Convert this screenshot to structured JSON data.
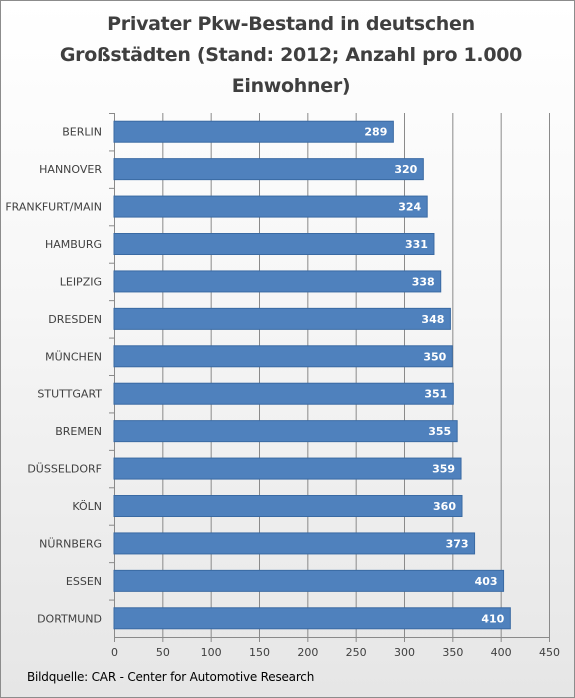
{
  "chart_data": {
    "type": "bar",
    "orientation": "horizontal",
    "title": "Privater Pkw-Bestand in deutschen\nGroßstädten (Stand: 2012; Anzahl pro 1.000\nEinwohner)",
    "categories": [
      "BERLIN",
      "HANNOVER",
      "FRANKFURT/MAIN",
      "HAMBURG",
      "LEIPZIG",
      "DRESDEN",
      "MÜNCHEN",
      "STUTTGART",
      "BREMEN",
      "DÜSSELDORF",
      "KÖLN",
      "NÜRNBERG",
      "ESSEN",
      "DORTMUND"
    ],
    "values": [
      289,
      320,
      324,
      331,
      338,
      348,
      350,
      351,
      355,
      359,
      360,
      373,
      403,
      410
    ],
    "xlim": [
      0,
      450
    ],
    "xticks": [
      0,
      50,
      100,
      150,
      200,
      250,
      300,
      350,
      400,
      450
    ],
    "grid": true,
    "bar_color": "#4f81bd",
    "data_labels": "inside-end"
  },
  "source": "Bildquelle: CAR - Center for Automotive Research"
}
